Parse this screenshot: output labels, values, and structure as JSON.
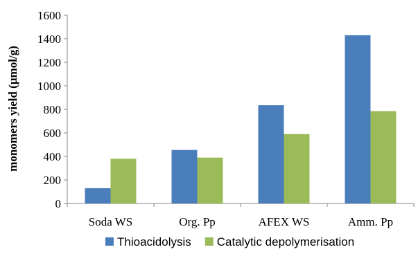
{
  "chart_data": {
    "type": "bar",
    "title": "",
    "xlabel": "",
    "ylabel": "monomers yield (µmol/g)",
    "categories": [
      "Soda WS",
      "Org. Pp",
      "AFEX WS",
      "Amm. Pp"
    ],
    "series": [
      {
        "name": "Thioacidolysis",
        "color": "#4a7ebb",
        "values": [
          130,
          455,
          835,
          1430
        ]
      },
      {
        "name": "Catalytic depolymerisation",
        "color": "#9bbb59",
        "values": [
          380,
          390,
          590,
          785
        ]
      }
    ],
    "ylim": [
      0,
      1600
    ],
    "yticks": [
      "0",
      "200",
      "400",
      "600",
      "800",
      "1000",
      "1200",
      "1400",
      "1600"
    ],
    "grid": false,
    "legend_position": "bottom"
  }
}
